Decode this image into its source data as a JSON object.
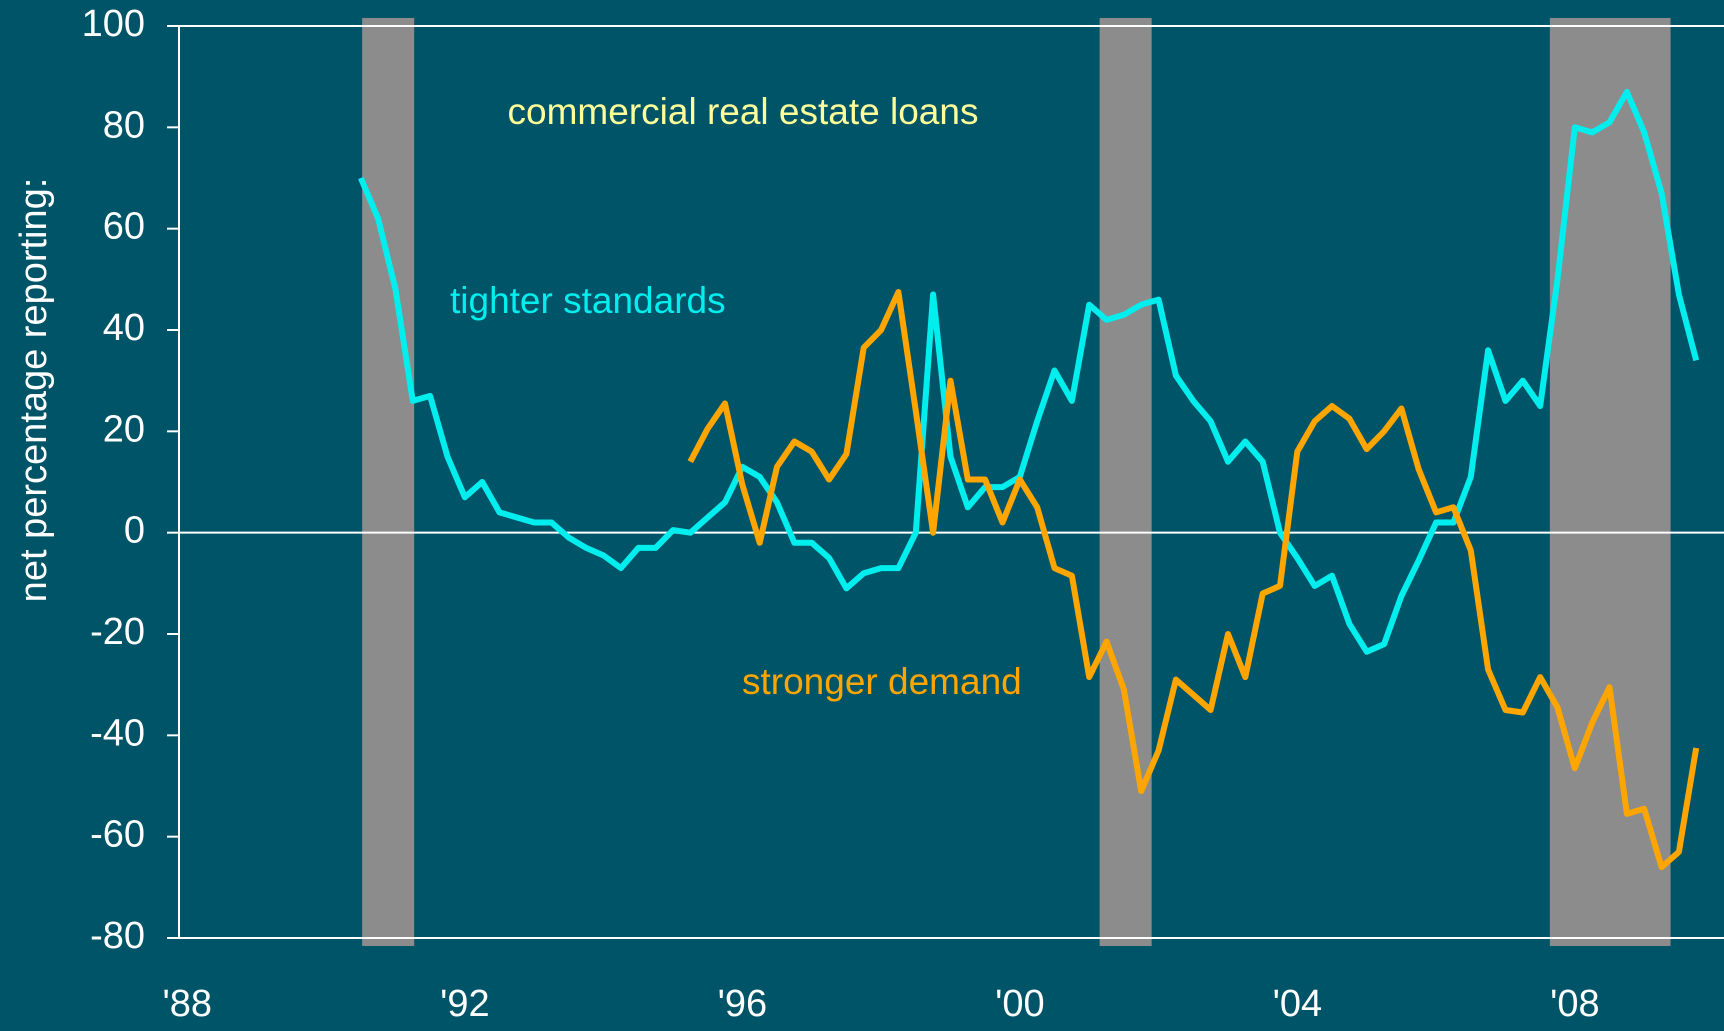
{
  "chart_data": {
    "type": "line",
    "title": "commercial real estate loans",
    "ylabel": "net percentage reporting:",
    "background": "#005468",
    "x": [
      1990.5,
      1990.75,
      1991,
      1991.25,
      1991.5,
      1991.75,
      1992,
      1992.25,
      1992.5,
      1992.75,
      1993,
      1993.25,
      1993.5,
      1993.75,
      1994,
      1994.25,
      1994.5,
      1994.75,
      1995,
      1995.25,
      1995.5,
      1995.75,
      1996,
      1996.25,
      1996.5,
      1996.75,
      1997,
      1997.25,
      1997.5,
      1997.75,
      1998,
      1998.25,
      1998.5,
      1998.75,
      1999,
      1999.25,
      1999.5,
      1999.75,
      2000,
      2000.25,
      2000.5,
      2000.75,
      2001,
      2001.25,
      2001.5,
      2001.75,
      2002,
      2002.25,
      2002.5,
      2002.75,
      2003,
      2003.25,
      2003.5,
      2003.75,
      2004,
      2004.25,
      2004.5,
      2004.75,
      2005,
      2005.25,
      2005.5,
      2005.75,
      2006,
      2006.25,
      2006.5,
      2006.75,
      2007,
      2007.25,
      2007.5,
      2007.75,
      2008,
      2008.25,
      2008.5,
      2008.75,
      2009,
      2009.25,
      2009.5,
      2009.75
    ],
    "series": [
      {
        "name": "tighter standards",
        "color": "#00eeee",
        "values": [
          70,
          62,
          48,
          26,
          27,
          15,
          7,
          10,
          4,
          3,
          2,
          2,
          -1,
          -3,
          -4.5,
          -7,
          -3,
          -3,
          0.5,
          0,
          3,
          6,
          13,
          11,
          6,
          -2,
          -2,
          -5,
          -11,
          -8,
          -7,
          -7,
          0,
          47,
          15,
          5,
          9,
          9,
          11,
          22,
          32,
          26,
          45,
          42,
          43,
          45,
          46,
          31,
          26,
          22,
          14,
          18,
          14,
          0,
          -5,
          -10.5,
          -8.5,
          -18,
          -23.5,
          -22,
          -12.5,
          -5.5,
          2,
          2,
          11,
          36,
          26,
          30,
          25,
          50,
          80,
          79,
          81,
          87,
          79,
          67,
          47,
          34
        ]
      },
      {
        "name": "stronger demand",
        "color": "#ffa500",
        "values": [
          null,
          null,
          null,
          null,
          null,
          null,
          null,
          null,
          null,
          null,
          null,
          null,
          null,
          null,
          null,
          null,
          null,
          null,
          null,
          14,
          20.5,
          25.5,
          9.5,
          -2,
          13,
          18,
          16,
          10.5,
          15.5,
          36.5,
          40,
          47.5,
          24,
          0,
          30,
          10.5,
          10.5,
          2,
          10.5,
          5,
          -7,
          -8.5,
          -28.5,
          -21.5,
          -31,
          -51,
          -43,
          -29,
          -32,
          -35,
          -20,
          -28.5,
          -12,
          -10.5,
          16,
          22,
          25,
          22.5,
          16.5,
          20,
          24.5,
          12.5,
          4,
          5,
          -3.5,
          -27,
          -35,
          -35.5,
          -28.5,
          -34.5,
          -46.5,
          -37.5,
          -30.5,
          -55.5,
          -54.5,
          -66,
          -63,
          -42.5
        ]
      }
    ],
    "title_color": "#ffff99",
    "shaded_periods": [
      [
        1990.52,
        1991.27
      ],
      [
        2001.15,
        2001.9
      ],
      [
        2007.64,
        2009.38
      ]
    ],
    "shade_color": "#8c8c8c",
    "xlim": [
      1987.88,
      2010.15
    ],
    "xticks": [
      {
        "value": 1988,
        "label": "'88"
      },
      {
        "value": 1992,
        "label": "'92"
      },
      {
        "value": 1996,
        "label": "'96"
      },
      {
        "value": 2000,
        "label": "'00"
      },
      {
        "value": 2004,
        "label": "'04"
      },
      {
        "value": 2008,
        "label": "'08"
      }
    ],
    "ylim": [
      -80,
      100
    ],
    "yticks": [
      100,
      80,
      60,
      40,
      20,
      0,
      -20,
      -40,
      -60,
      -80
    ],
    "zero_line": true
  }
}
